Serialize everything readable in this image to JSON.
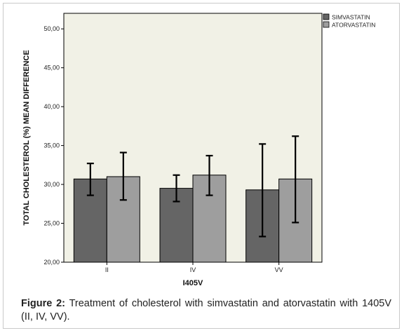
{
  "chart_data": {
    "type": "bar",
    "title": "",
    "xlabel": "I405V",
    "ylabel": "TOTAL CHOLESTEROL (%) MEAN DIFFERENCE",
    "categories": [
      "II",
      "IV",
      "VV"
    ],
    "ylim": [
      20,
      52
    ],
    "yticks": [
      20,
      25,
      30,
      35,
      40,
      45,
      50
    ],
    "ytick_labels": [
      "20,00",
      "25,00",
      "30,00",
      "35,00",
      "40,00",
      "45,00",
      "50,00"
    ],
    "grid": false,
    "legend_position": "top-right",
    "series": [
      {
        "name": "SIMVASTATIN",
        "color": "#656565",
        "values": [
          30.7,
          29.5,
          29.3
        ],
        "err_low": [
          28.6,
          27.8,
          23.3
        ],
        "err_high": [
          32.7,
          31.2,
          35.2
        ]
      },
      {
        "name": "ATORVASTATIN",
        "color": "#9e9e9e",
        "values": [
          31.0,
          31.2,
          30.7
        ],
        "err_low": [
          28.0,
          28.6,
          25.1
        ],
        "err_high": [
          34.1,
          33.7,
          36.2
        ]
      }
    ]
  },
  "caption": {
    "label": "Figure 2:",
    "text": " Treatment of cholesterol with simvastatin and atorvastatin with 1405V (II, IV, VV)."
  }
}
